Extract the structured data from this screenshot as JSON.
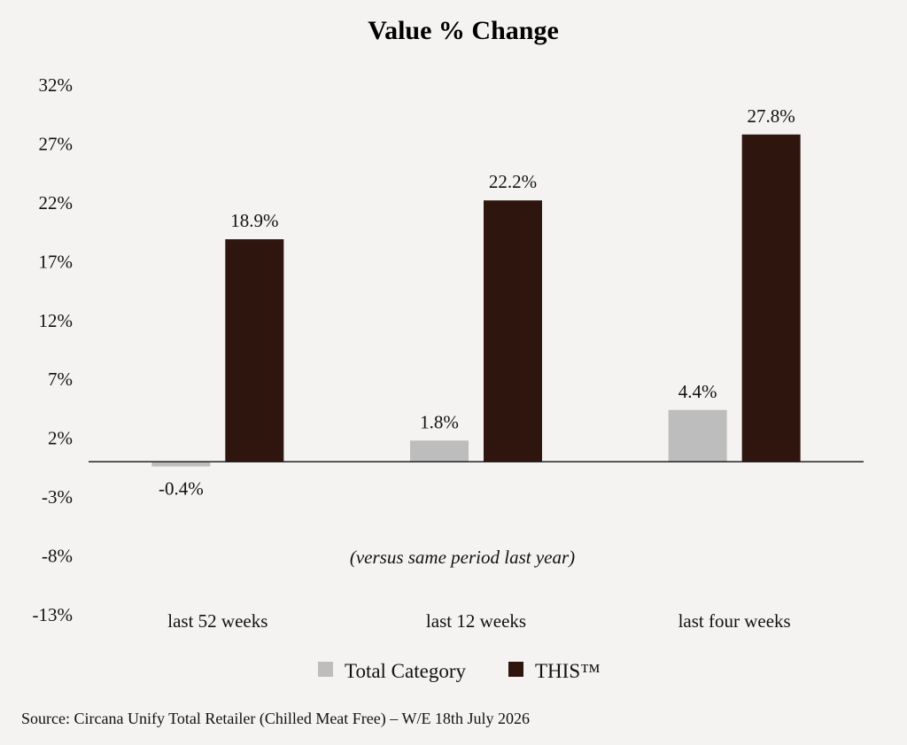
{
  "chart_data": {
    "type": "bar",
    "title": "Value % Change",
    "subtitle": "",
    "note": "(versus same period last year)",
    "categories": [
      "last 52 weeks",
      "last 12 weeks",
      "last four weeks"
    ],
    "series": [
      {
        "name": "Total Category",
        "color": "#bdbdbd",
        "values": [
          -0.4,
          1.8,
          4.4
        ],
        "labels": [
          "-0.4%",
          "1.8%",
          "4.4%"
        ]
      },
      {
        "name": "THIS™",
        "color": "#2e160f",
        "values": [
          18.9,
          22.2,
          27.8
        ],
        "labels": [
          "18.9%",
          "22.2%",
          "27.8%"
        ]
      }
    ],
    "yticks": [
      32,
      27,
      22,
      17,
      12,
      7,
      2,
      -3,
      -8,
      -13
    ],
    "ytick_labels": [
      "32%",
      "27%",
      "22%",
      "17%",
      "12%",
      "7%",
      "2%",
      "-3%",
      "-8%",
      "-13%"
    ],
    "ylim": [
      -13,
      32
    ],
    "grid": false,
    "legend_position": "bottom",
    "source": "Source: Circana Unify Total Retailer (Chilled Meat Free) – W/E 18th July 2026"
  }
}
